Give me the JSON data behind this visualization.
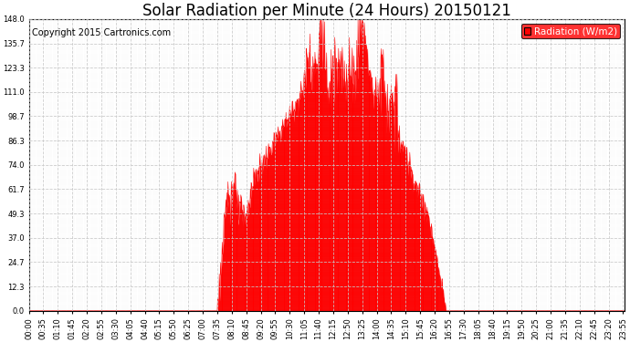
{
  "title": "Solar Radiation per Minute (24 Hours) 20150121",
  "copyright": "Copyright 2015 Cartronics.com",
  "legend_label": "Radiation (W/m2)",
  "fill_color": "#FF0000",
  "line_color": "#FF0000",
  "background_color": "#FFFFFF",
  "grid_color": "#C8C8C8",
  "zero_line_color": "#FF0000",
  "ylim": [
    0.0,
    148.0
  ],
  "yticks": [
    0.0,
    12.3,
    24.7,
    37.0,
    49.3,
    61.7,
    74.0,
    86.3,
    98.7,
    111.0,
    123.3,
    135.7,
    148.0
  ],
  "title_fontsize": 12,
  "copyright_fontsize": 7,
  "legend_fontsize": 7.5,
  "tick_fontsize": 6,
  "total_minutes": 1440,
  "sunrise_minute": 455,
  "sunset_minute": 1005
}
